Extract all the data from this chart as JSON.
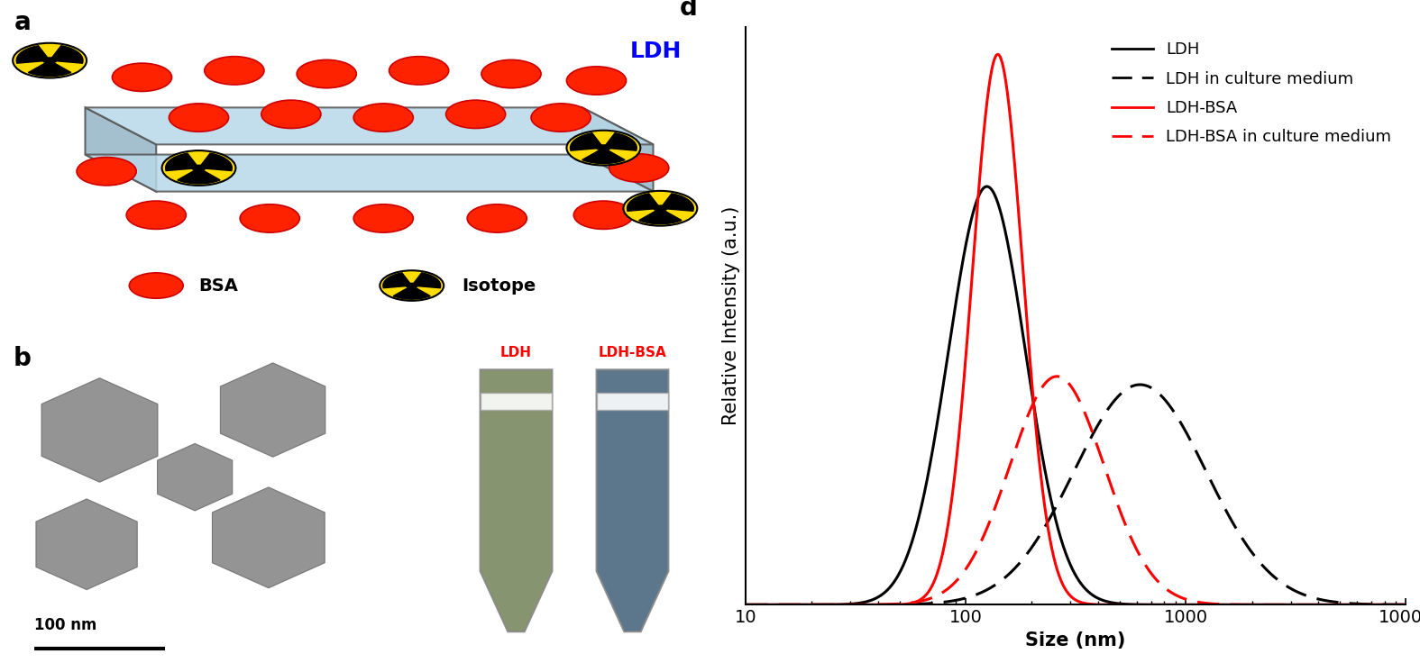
{
  "xlabel": "Size (nm)",
  "ylabel": "Relative Intensity (a.u.)",
  "panel_label": "d",
  "curves": {
    "LDH": {
      "color": "#000000",
      "linestyle": "solid",
      "linewidth": 2.2,
      "peak": 125,
      "sigma_log": 0.175,
      "amplitude": 0.76
    },
    "LDH_culture": {
      "color": "#000000",
      "linestyle": "dashed",
      "linewidth": 2.2,
      "peak": 620,
      "sigma_log": 0.3,
      "amplitude": 0.4
    },
    "LDH_BSA": {
      "color": "#ff0000",
      "linestyle": "solid",
      "linewidth": 2.2,
      "peak": 140,
      "sigma_log": 0.115,
      "amplitude": 1.0
    },
    "LDH_BSA_culture": {
      "color": "#ff0000",
      "linestyle": "dashed",
      "linewidth": 2.2,
      "peak": 260,
      "sigma_log": 0.215,
      "amplitude": 0.415
    }
  },
  "background_color": "#ffffff",
  "tick_fontsize": 14,
  "label_fontsize": 15,
  "legend_fontsize": 13,
  "panel_label_fontsize": 20,
  "bsa_color": "#ff2200",
  "bsa_edge": "#cc0000",
  "isotope_bg": "#ffdd00",
  "layer_color": "#b8d8e8",
  "layer_edge": "#555555"
}
